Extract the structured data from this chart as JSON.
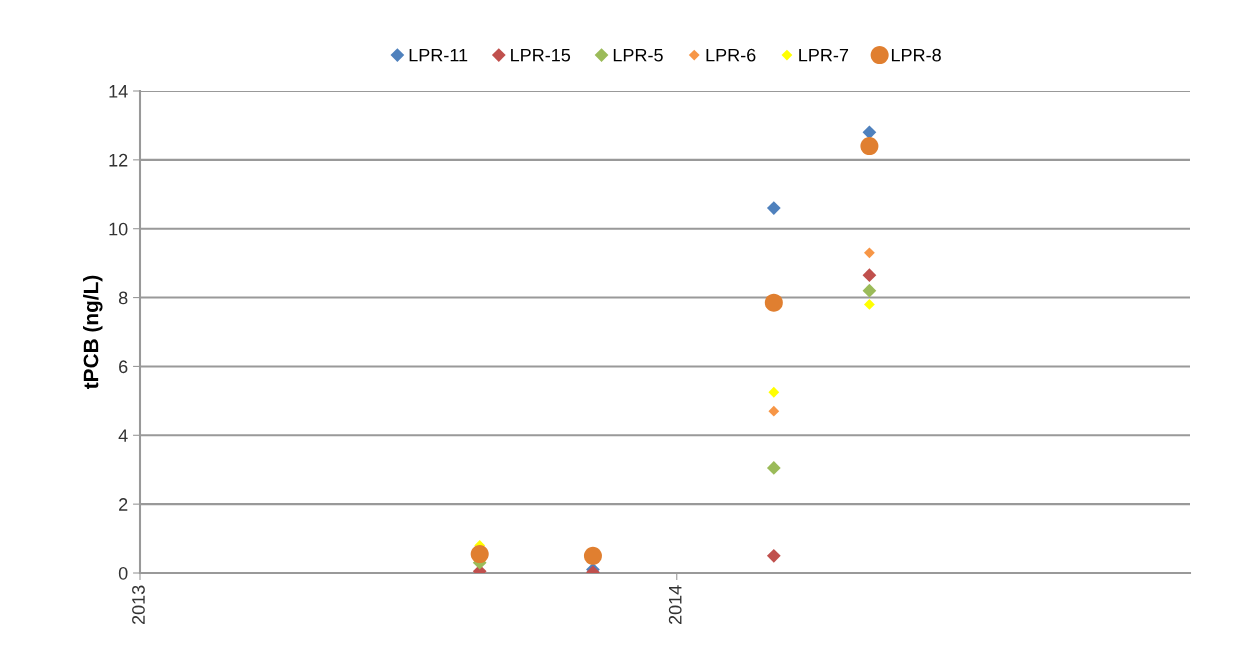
{
  "chart_data": {
    "type": "scatter",
    "ylabel": "tPCB (ng/L)",
    "x": [
      "2013-08-20",
      "2013-11-05",
      "2014-03-08",
      "2014-05-12"
    ],
    "xlim": [
      "2013-01-01",
      "2014-12-16"
    ],
    "xticks": [
      {
        "value": "2013-01-01",
        "label": "2013"
      },
      {
        "value": "2014-01-01",
        "label": "2014"
      }
    ],
    "ylim": [
      0,
      14
    ],
    "yticks": [
      0,
      2,
      4,
      6,
      8,
      10,
      12,
      14
    ],
    "grid": "y",
    "legend": "top",
    "series": [
      {
        "name": "LPR-11",
        "color": "#4f81bd",
        "marker": "diamond",
        "values": [
          null,
          0.1,
          10.6,
          12.8
        ]
      },
      {
        "name": "LPR-15",
        "color": "#c0504d",
        "marker": "diamond",
        "values": [
          0.05,
          0.02,
          0.5,
          8.65
        ]
      },
      {
        "name": "LPR-5",
        "color": "#9bbb59",
        "marker": "diamond",
        "values": [
          0.3,
          null,
          3.05,
          8.2
        ]
      },
      {
        "name": "LPR-6",
        "color": "#f79646",
        "marker": "diamond",
        "values": [
          null,
          null,
          4.7,
          9.3
        ]
      },
      {
        "name": "LPR-7",
        "color": "#ffff00",
        "marker": "diamond",
        "values": [
          0.8,
          null,
          5.25,
          7.8
        ]
      },
      {
        "name": "LPR-8",
        "color": "#e07f30",
        "marker": "circle",
        "values": [
          0.55,
          0.5,
          7.85,
          12.4
        ]
      }
    ]
  }
}
